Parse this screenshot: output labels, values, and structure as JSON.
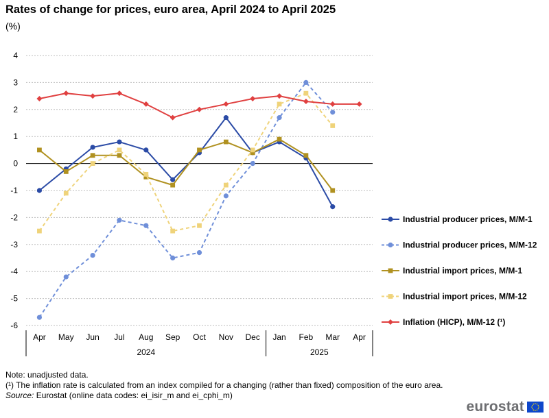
{
  "title": "Rates of change for prices, euro area, April 2024 to April 2025",
  "subtitle": "(%)",
  "chart_data": {
    "type": "line",
    "categories": [
      "Apr",
      "May",
      "Jun",
      "Jul",
      "Aug",
      "Sep",
      "Oct",
      "Nov",
      "Dec",
      "Jan",
      "Feb",
      "Mar",
      "Apr"
    ],
    "year_groups": [
      {
        "label": "2024",
        "from": 0,
        "to": 8
      },
      {
        "label": "2025",
        "from": 9,
        "to": 12
      }
    ],
    "ylim": [
      -6,
      4
    ],
    "yticks": [
      4,
      3,
      2,
      1,
      0,
      -1,
      -2,
      -3,
      -4,
      -5,
      -6
    ],
    "grid": true,
    "legend_position": "right",
    "series": [
      {
        "name": "Industrial producer prices, M/M-1",
        "color": "#2b4ba6",
        "dash": false,
        "marker": "circle",
        "values": [
          -1.0,
          -0.2,
          0.6,
          0.8,
          0.5,
          -0.6,
          0.4,
          1.7,
          0.4,
          0.8,
          0.2,
          -1.6,
          null
        ]
      },
      {
        "name": "Industrial producer prices, M/M-12",
        "color": "#6f8fd9",
        "dash": true,
        "marker": "circle",
        "values": [
          -5.7,
          -4.2,
          -3.4,
          -2.1,
          -2.3,
          -3.5,
          -3.3,
          -1.2,
          0.0,
          1.7,
          3.0,
          1.9,
          null
        ]
      },
      {
        "name": "Industrial import prices, M/M-1",
        "color": "#b09120",
        "dash": false,
        "marker": "square",
        "values": [
          0.5,
          -0.3,
          0.3,
          0.3,
          -0.5,
          -0.8,
          0.5,
          0.8,
          0.4,
          0.9,
          0.3,
          -1.0,
          null
        ]
      },
      {
        "name": "Industrial import prices, M/M-12",
        "color": "#efd37a",
        "dash": true,
        "marker": "square",
        "values": [
          -2.5,
          -1.1,
          0.0,
          0.5,
          -0.4,
          -2.5,
          -2.3,
          -0.8,
          0.5,
          2.2,
          2.6,
          1.4,
          null
        ]
      },
      {
        "name": "Inflation (HICP), M/M-12 (¹)",
        "color": "#e04040",
        "dash": false,
        "marker": "diamond",
        "values": [
          2.4,
          2.6,
          2.5,
          2.6,
          2.2,
          1.7,
          2.0,
          2.2,
          2.4,
          2.5,
          2.3,
          2.2,
          2.2
        ]
      }
    ]
  },
  "notes": {
    "note1": "Note: unadjusted data.",
    "note2": "(¹) The inflation rate is calculated from an index compiled for a changing (rather than fixed) composition of the euro area.",
    "source_label": "Source:",
    "source_text": " Eurostat (online data codes: ei_isir_m and ei_cphi_m)"
  },
  "logo": {
    "text": "eurostat",
    "flag_color": "#0e47cb",
    "star_color": "#ffdd00"
  }
}
